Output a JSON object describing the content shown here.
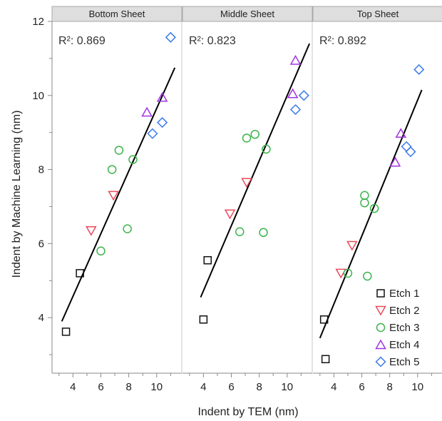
{
  "chart_data": {
    "type": "scatter",
    "xlabel": "Indent by TEM (nm)",
    "ylabel": "Indent by Machine Learning (nm)",
    "xlim": [
      2.5,
      11.8
    ],
    "ylim": [
      2.5,
      12
    ],
    "xticks": [
      4,
      6,
      8,
      10
    ],
    "yticks": [
      4,
      6,
      8,
      10,
      12
    ],
    "grid": false,
    "legend_position": "bottom-right",
    "series_styles": [
      {
        "name": "Etch 1",
        "marker": "square",
        "color": "#111111"
      },
      {
        "name": "Etch 2",
        "marker": "triangle-down",
        "color": "#ea4a5a"
      },
      {
        "name": "Etch 3",
        "marker": "circle",
        "color": "#3cb44b"
      },
      {
        "name": "Etch 4",
        "marker": "triangle-up",
        "color": "#a033e0"
      },
      {
        "name": "Etch 5",
        "marker": "diamond",
        "color": "#3a7bea"
      }
    ],
    "panels": [
      {
        "title": "Bottom Sheet",
        "r2_label": "R²: 0.869",
        "fit_line": {
          "x": [
            3.2,
            11.3
          ],
          "y": [
            3.9,
            10.75
          ]
        },
        "series": [
          {
            "name": "Etch 1",
            "points": [
              [
                3.5,
                3.62
              ],
              [
                4.5,
                5.2
              ]
            ]
          },
          {
            "name": "Etch 2",
            "points": [
              [
                5.3,
                6.35
              ],
              [
                6.9,
                7.3
              ]
            ]
          },
          {
            "name": "Etch 3",
            "points": [
              [
                6.0,
                5.8
              ],
              [
                6.8,
                8.0
              ],
              [
                7.3,
                8.52
              ],
              [
                7.9,
                6.4
              ],
              [
                8.3,
                8.27
              ]
            ]
          },
          {
            "name": "Etch 4",
            "points": [
              [
                9.3,
                9.55
              ],
              [
                10.4,
                9.95
              ]
            ]
          },
          {
            "name": "Etch 5",
            "points": [
              [
                9.7,
                8.97
              ],
              [
                10.4,
                9.27
              ],
              [
                11.0,
                11.57
              ]
            ]
          }
        ]
      },
      {
        "title": "Middle Sheet",
        "r2_label": "R²: 0.823",
        "fit_line": {
          "x": [
            3.8,
            11.6
          ],
          "y": [
            4.55,
            11.4
          ]
        },
        "series": [
          {
            "name": "Etch 1",
            "points": [
              [
                4.0,
                3.95
              ],
              [
                4.3,
                5.55
              ]
            ]
          },
          {
            "name": "Etch 2",
            "points": [
              [
                5.9,
                6.8
              ],
              [
                7.1,
                7.65
              ]
            ]
          },
          {
            "name": "Etch 3",
            "points": [
              [
                6.6,
                6.32
              ],
              [
                7.1,
                8.85
              ],
              [
                7.7,
                8.95
              ],
              [
                8.3,
                6.3
              ],
              [
                8.5,
                8.55
              ]
            ]
          },
          {
            "name": "Etch 4",
            "points": [
              [
                10.4,
                10.05
              ],
              [
                10.6,
                10.95
              ]
            ]
          },
          {
            "name": "Etch 5",
            "points": [
              [
                10.6,
                9.62
              ],
              [
                11.2,
                10.0
              ]
            ]
          }
        ]
      },
      {
        "title": "Top Sheet",
        "r2_label": "R²: 0.892",
        "fit_line": {
          "x": [
            3.0,
            10.3
          ],
          "y": [
            3.45,
            10.15
          ]
        },
        "series": [
          {
            "name": "Etch 1",
            "points": [
              [
                3.3,
                3.95
              ],
              [
                3.4,
                2.88
              ]
            ]
          },
          {
            "name": "Etch 2",
            "points": [
              [
                4.5,
                5.2
              ],
              [
                5.3,
                5.95
              ]
            ]
          },
          {
            "name": "Etch 3",
            "points": [
              [
                5.0,
                5.2
              ],
              [
                6.2,
                7.3
              ],
              [
                6.2,
                7.1
              ],
              [
                6.4,
                5.12
              ],
              [
                6.9,
                6.95
              ]
            ]
          },
          {
            "name": "Etch 4",
            "points": [
              [
                8.4,
                8.2
              ],
              [
                8.8,
                8.98
              ]
            ]
          },
          {
            "name": "Etch 5",
            "points": [
              [
                9.2,
                8.62
              ],
              [
                9.5,
                8.48
              ],
              [
                10.1,
                10.7
              ]
            ]
          }
        ]
      }
    ]
  }
}
